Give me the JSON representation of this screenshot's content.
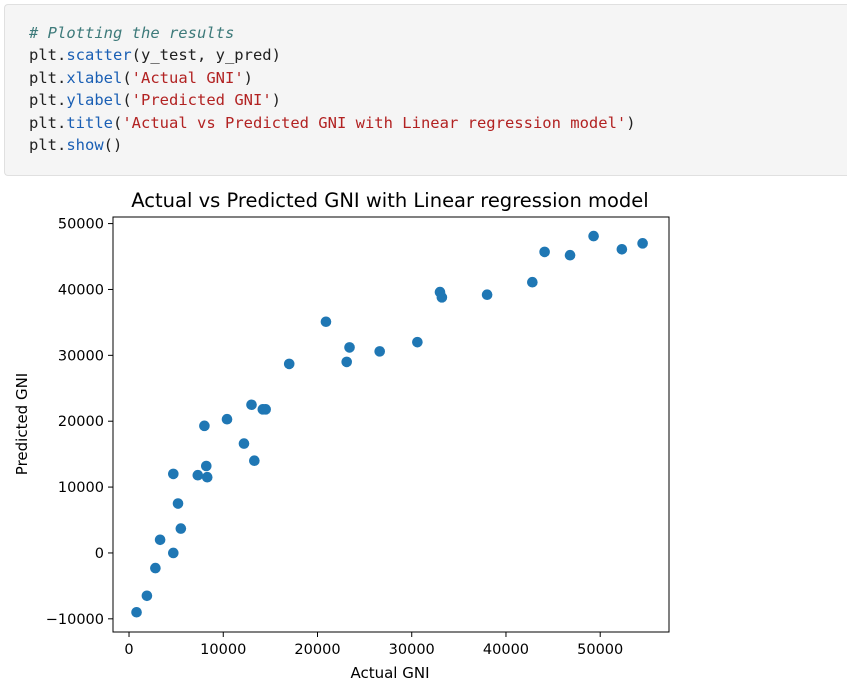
{
  "code_cell": {
    "lines": [
      [
        {
          "t": "# Plotting the results",
          "c": "comment"
        }
      ],
      [
        {
          "t": "plt.",
          "c": "plain"
        },
        {
          "t": "scatter",
          "c": "attr"
        },
        {
          "t": "(y_test, y_pred)",
          "c": "plain"
        }
      ],
      [
        {
          "t": "plt.",
          "c": "plain"
        },
        {
          "t": "xlabel",
          "c": "attr"
        },
        {
          "t": "(",
          "c": "plain"
        },
        {
          "t": "'Actual GNI'",
          "c": "str"
        },
        {
          "t": ")",
          "c": "plain"
        }
      ],
      [
        {
          "t": "plt.",
          "c": "plain"
        },
        {
          "t": "ylabel",
          "c": "attr"
        },
        {
          "t": "(",
          "c": "plain"
        },
        {
          "t": "'Predicted GNI'",
          "c": "str"
        },
        {
          "t": ")",
          "c": "plain"
        }
      ],
      [
        {
          "t": "plt.",
          "c": "plain"
        },
        {
          "t": "title",
          "c": "attr"
        },
        {
          "t": "(",
          "c": "plain"
        },
        {
          "t": "'Actual vs Predicted GNI with Linear regression model'",
          "c": "str"
        },
        {
          "t": ")",
          "c": "plain"
        }
      ],
      [
        {
          "t": "plt.",
          "c": "plain"
        },
        {
          "t": "show",
          "c": "attr"
        },
        {
          "t": "()",
          "c": "plain"
        }
      ]
    ]
  },
  "chart_data": {
    "type": "scatter",
    "title": "Actual vs Predicted GNI with Linear regression model",
    "xlabel": "Actual GNI",
    "ylabel": "Predicted GNI",
    "xlim": [
      -1700,
      57300
    ],
    "ylim": [
      -12000,
      51000
    ],
    "xticks": [
      0,
      10000,
      20000,
      30000,
      40000,
      50000
    ],
    "xtick_labels": [
      "0",
      "10000",
      "20000",
      "30000",
      "40000",
      "50000"
    ],
    "yticks": [
      -10000,
      0,
      10000,
      20000,
      30000,
      40000,
      50000
    ],
    "ytick_labels": [
      "−10000",
      "0",
      "10000",
      "20000",
      "30000",
      "40000",
      "50000"
    ],
    "grid": false,
    "marker_color": "#1f77b4",
    "points": [
      {
        "x": 800,
        "y": -9000
      },
      {
        "x": 1900,
        "y": -6500
      },
      {
        "x": 2800,
        "y": -2300
      },
      {
        "x": 3300,
        "y": 2000
      },
      {
        "x": 4700,
        "y": 12000
      },
      {
        "x": 4700,
        "y": 0
      },
      {
        "x": 5200,
        "y": 7500
      },
      {
        "x": 5500,
        "y": 3700
      },
      {
        "x": 7300,
        "y": 11800
      },
      {
        "x": 8000,
        "y": 19300
      },
      {
        "x": 8200,
        "y": 13200
      },
      {
        "x": 8300,
        "y": 11500
      },
      {
        "x": 10400,
        "y": 20300
      },
      {
        "x": 12200,
        "y": 16600
      },
      {
        "x": 13000,
        "y": 22500
      },
      {
        "x": 13300,
        "y": 14000
      },
      {
        "x": 14200,
        "y": 21800
      },
      {
        "x": 14500,
        "y": 21800
      },
      {
        "x": 17000,
        "y": 28700
      },
      {
        "x": 20900,
        "y": 35100
      },
      {
        "x": 23100,
        "y": 29000
      },
      {
        "x": 23400,
        "y": 31200
      },
      {
        "x": 26600,
        "y": 30600
      },
      {
        "x": 30600,
        "y": 32000
      },
      {
        "x": 33000,
        "y": 39600
      },
      {
        "x": 33200,
        "y": 38800
      },
      {
        "x": 38000,
        "y": 39200
      },
      {
        "x": 42800,
        "y": 41100
      },
      {
        "x": 44100,
        "y": 45700
      },
      {
        "x": 46800,
        "y": 45200
      },
      {
        "x": 49300,
        "y": 48100
      },
      {
        "x": 52300,
        "y": 46100
      },
      {
        "x": 54500,
        "y": 47000
      }
    ]
  }
}
